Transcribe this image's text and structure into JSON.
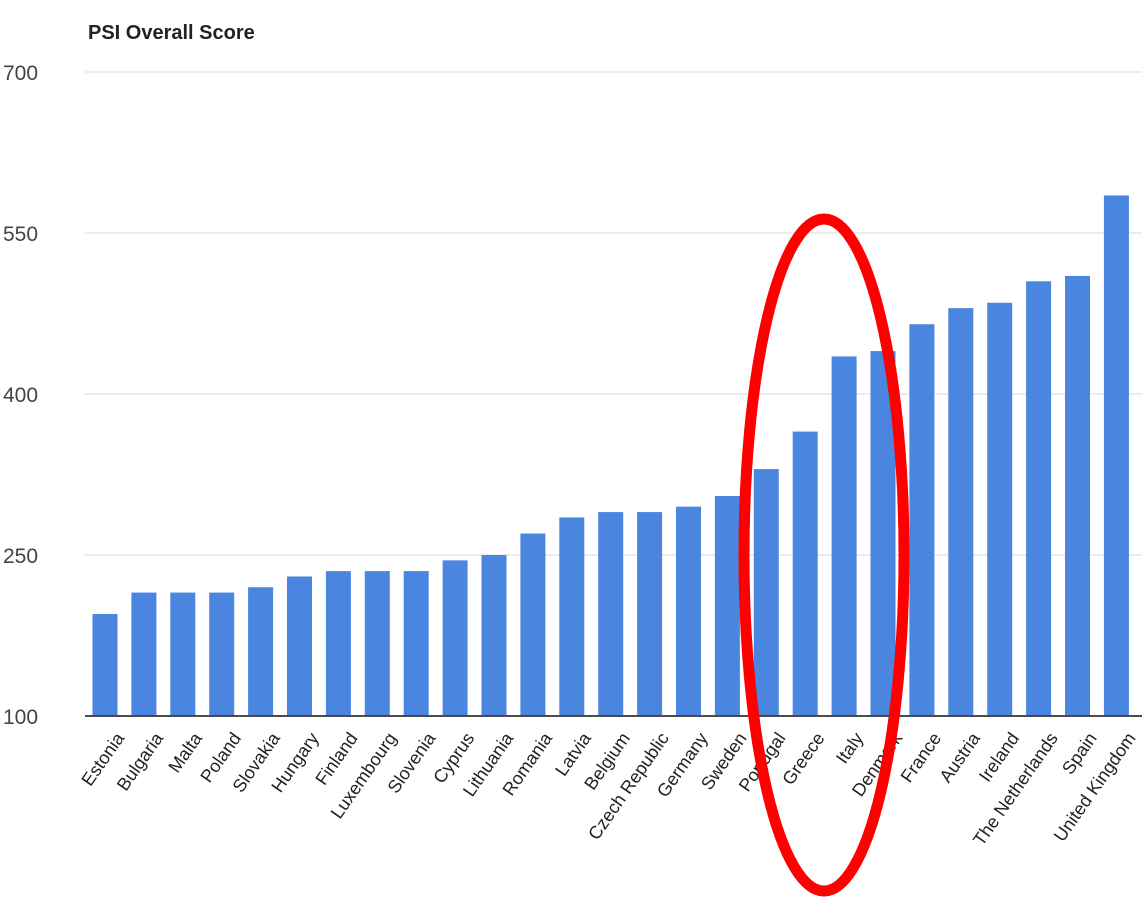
{
  "chart_data": {
    "type": "bar",
    "title": "PSI Overall Score",
    "xlabel": "",
    "ylabel": "",
    "ylim": [
      100,
      700
    ],
    "yticks": [
      100,
      250,
      400,
      550,
      700
    ],
    "grid": true,
    "legend": "none",
    "bar_color": "#4a86e0",
    "categories": [
      "Estonia",
      "Bulgaria",
      "Malta",
      "Poland",
      "Slovakia",
      "Hungary",
      "Finland",
      "Luxembourg",
      "Slovenia",
      "Cyprus",
      "Lithuania",
      "Romania",
      "Latvia",
      "Belgium",
      "Czech Republic",
      "Germany",
      "Sweden",
      "Portugal",
      "Greece",
      "Italy",
      "Denmark",
      "France",
      "Austria",
      "Ireland",
      "The Netherlands",
      "Spain",
      "United Kingdom"
    ],
    "values": [
      195,
      215,
      215,
      215,
      220,
      230,
      235,
      235,
      235,
      245,
      250,
      270,
      285,
      290,
      290,
      295,
      305,
      330,
      365,
      435,
      440,
      465,
      480,
      485,
      505,
      510,
      585
    ],
    "annotation": {
      "shape": "ellipse",
      "color": "#ff0000",
      "highlights": [
        "Portugal",
        "Greece",
        "Italy",
        "Denmark"
      ]
    }
  }
}
